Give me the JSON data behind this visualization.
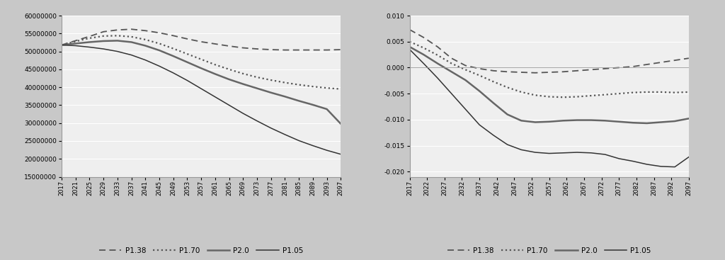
{
  "years": [
    2017,
    2021,
    2025,
    2029,
    2033,
    2037,
    2041,
    2045,
    2049,
    2053,
    2057,
    2061,
    2065,
    2069,
    2073,
    2077,
    2081,
    2085,
    2089,
    2093,
    2097
  ],
  "left_ylim": [
    15000000,
    60000000
  ],
  "left_yticks": [
    15000000,
    20000000,
    25000000,
    30000000,
    35000000,
    40000000,
    45000000,
    50000000,
    55000000,
    60000000
  ],
  "right_ylim": [
    -0.021,
    0.01
  ],
  "right_yticks": [
    -0.02,
    -0.015,
    -0.01,
    -0.005,
    0,
    0.005,
    0.01
  ],
  "bg_color": "#c8c8c8",
  "plot_bg": "#efefef",
  "line_color": "#555555",
  "legend_labels": [
    "P1.38",
    "P1.70",
    "P2.0",
    "P1.05"
  ],
  "left_P138": [
    51800000,
    53000000,
    54200000,
    55500000,
    56000000,
    56200000,
    55800000,
    55200000,
    54400000,
    53500000,
    52700000,
    52100000,
    51500000,
    51000000,
    50700000,
    50500000,
    50400000,
    50400000,
    50400000,
    50400000,
    50500000
  ],
  "left_P170": [
    51800000,
    52800000,
    53700000,
    54300000,
    54400000,
    54100000,
    53300000,
    52200000,
    50800000,
    49300000,
    47800000,
    46300000,
    45000000,
    43800000,
    42800000,
    42000000,
    41300000,
    40700000,
    40200000,
    39800000,
    39500000
  ],
  "left_P20": [
    51800000,
    52200000,
    52600000,
    52900000,
    53000000,
    52600000,
    51600000,
    50300000,
    48700000,
    47000000,
    45300000,
    43700000,
    42200000,
    40900000,
    39700000,
    38500000,
    37400000,
    36200000,
    35100000,
    33900000,
    29800000
  ],
  "left_P105": [
    51800000,
    51600000,
    51200000,
    50700000,
    50000000,
    49000000,
    47600000,
    45900000,
    44000000,
    41900000,
    39600000,
    37300000,
    35000000,
    32700000,
    30600000,
    28600000,
    26800000,
    25100000,
    23700000,
    22400000,
    21300000
  ],
  "right_P138": [
    0.0073,
    0.0058,
    0.004,
    0.0018,
    0.0004,
    -0.0002,
    -0.0006,
    -0.0008,
    -0.0009,
    -0.001,
    -0.0009,
    -0.0008,
    -0.0006,
    -0.0004,
    -0.0002,
    0.0,
    0.0002,
    0.0006,
    0.001,
    0.0014,
    0.0018
  ],
  "right_P170": [
    0.005,
    0.0038,
    0.0024,
    0.0008,
    -0.0004,
    -0.0015,
    -0.0027,
    -0.0038,
    -0.0047,
    -0.0053,
    -0.0056,
    -0.0057,
    -0.0056,
    -0.0054,
    -0.0052,
    -0.005,
    -0.0048,
    -0.0047,
    -0.0047,
    -0.0048,
    -0.0047
  ],
  "right_P20": [
    0.004,
    0.0025,
    0.0008,
    -0.0008,
    -0.0024,
    -0.0045,
    -0.0068,
    -0.009,
    -0.0102,
    -0.0105,
    -0.0104,
    -0.0102,
    -0.0101,
    -0.0101,
    -0.0102,
    -0.0104,
    -0.0106,
    -0.0107,
    -0.0105,
    -0.0103,
    -0.0098
  ],
  "right_P105": [
    0.0035,
    0.0008,
    -0.002,
    -0.005,
    -0.008,
    -0.011,
    -0.013,
    -0.0148,
    -0.0158,
    -0.0163,
    -0.0165,
    -0.0164,
    -0.0163,
    -0.0164,
    -0.0167,
    -0.0175,
    -0.018,
    -0.0186,
    -0.019,
    -0.0191,
    -0.0172
  ],
  "xtick_years_left": [
    2017,
    2021,
    2025,
    2029,
    2033,
    2037,
    2041,
    2045,
    2049,
    2053,
    2057,
    2061,
    2065,
    2069,
    2073,
    2077,
    2081,
    2085,
    2089,
    2093,
    2097
  ],
  "xtick_years_right": [
    2017,
    2022,
    2027,
    2032,
    2037,
    2042,
    2047,
    2052,
    2057,
    2062,
    2067,
    2072,
    2077,
    2082,
    2087,
    2092,
    2097
  ]
}
